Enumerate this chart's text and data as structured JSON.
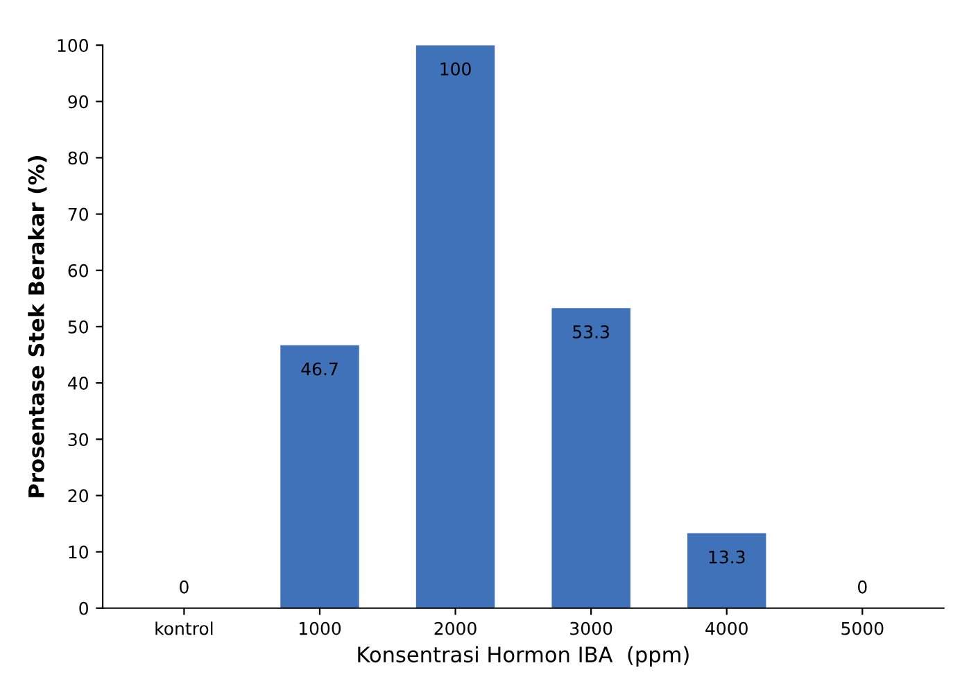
{
  "chart_data": {
    "type": "bar",
    "xlabel": "Konsentrasi Hormon IBA  (ppm)",
    "ylabel": "Prosentase Stek Berakar (%)",
    "categories": [
      "kontrol",
      "1000",
      "2000",
      "3000",
      "4000",
      "5000"
    ],
    "values": [
      0,
      46.7,
      100,
      53.3,
      13.3,
      0
    ],
    "color": "#3f72b8",
    "ylim": [
      0,
      100
    ],
    "yticks": [
      0,
      10,
      20,
      30,
      40,
      50,
      60,
      70,
      80,
      90,
      100
    ],
    "grid": false,
    "data_labels": true
  }
}
